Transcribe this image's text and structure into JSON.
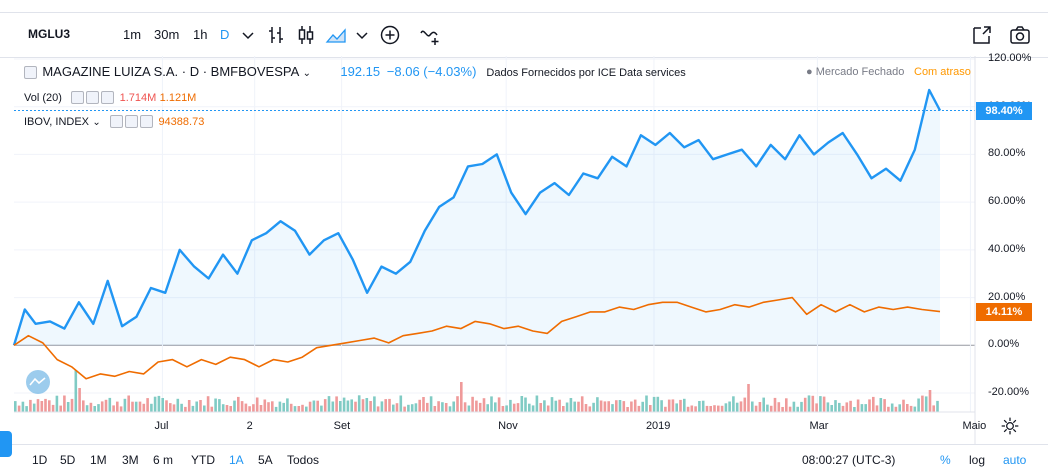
{
  "toolbar": {
    "symbol": "MGLU3",
    "intervals": [
      "1m",
      "30m",
      "1h",
      "D"
    ],
    "active_interval": "D"
  },
  "legend": {
    "title": "MAGAZINE LUIZA S.A. · D · BMFBOVESPA",
    "price": "192.15",
    "change": "−8.06 (−4.03%)",
    "provider": "Dados Fornecidos por ICE Data services",
    "market_status": "● Mercado Fechado",
    "delay": "Com atraso",
    "vol_label": "Vol (20)",
    "vol_val1": "1.714M",
    "vol_val2": "1.121M",
    "ibov_label": "IBOV, INDEX",
    "ibov_value": "94388.73"
  },
  "bottom": {
    "ranges": [
      "1D",
      "5D",
      "1M",
      "3M",
      "6 m",
      "YTD",
      "1A",
      "5A",
      "Todos"
    ],
    "active_range": "1A",
    "clock": "08:00:27 (UTC-3)",
    "pct": "%",
    "log": "log",
    "auto": "auto"
  },
  "colors": {
    "main": "#2196f3",
    "compare": "#ef6c00",
    "vol_up": "#80cbc4",
    "vol_down": "#ef9a9a"
  },
  "chart_data": {
    "type": "line",
    "title": "MAGAZINE LUIZA S.A. · D · BMFBOVESPA",
    "y_unit": "%",
    "ylim": [
      -28,
      122
    ],
    "yticks": [
      -20,
      0,
      20,
      40,
      60,
      80,
      100,
      120
    ],
    "ytick_labels": [
      "-20.00%",
      "0.00%",
      "20.00%",
      "40.00%",
      "60.00%",
      "80.00%",
      "100.00%",
      "120.00%"
    ],
    "xticks": [
      "Jul",
      "2",
      "Set",
      "Nov",
      "2019",
      "Mar",
      "Maio"
    ],
    "last_labels": {
      "MGLU3": "98.40%",
      "IBOV": "14.11%"
    },
    "series": [
      {
        "name": "MGLU3",
        "x": [
          0,
          3,
          6,
          10,
          14,
          18,
          22,
          26,
          30,
          34,
          38,
          42,
          46,
          50,
          54,
          58,
          62,
          66,
          70,
          74,
          78,
          82,
          86,
          90,
          94,
          98,
          102,
          106,
          110,
          114,
          118,
          122,
          126,
          130,
          134,
          138,
          142,
          146,
          150,
          154,
          158,
          162,
          166,
          170,
          174,
          178,
          182,
          186,
          190,
          194,
          198,
          202,
          206,
          210,
          214,
          218,
          222,
          226,
          230,
          234,
          238,
          242,
          246,
          250,
          254,
          257
        ],
        "y": [
          0,
          15,
          9,
          10,
          7,
          18,
          9,
          27,
          8,
          12,
          24,
          22,
          40,
          33,
          28,
          38,
          30,
          44,
          47,
          52,
          48,
          38,
          44,
          47,
          36,
          22,
          33,
          30,
          35,
          48,
          58,
          62,
          75,
          76,
          80,
          64,
          55,
          64,
          68,
          63,
          72,
          70,
          79,
          75,
          88,
          84,
          89,
          83,
          86,
          78,
          80,
          82,
          75,
          84,
          78,
          88,
          80,
          85,
          89,
          80,
          70,
          74,
          69,
          82,
          107,
          98.4
        ]
      },
      {
        "name": "IBOV, INDEX",
        "x": [
          0,
          4,
          8,
          12,
          16,
          20,
          24,
          28,
          32,
          36,
          40,
          44,
          48,
          52,
          56,
          60,
          64,
          68,
          72,
          76,
          80,
          84,
          88,
          92,
          96,
          100,
          104,
          108,
          112,
          116,
          120,
          124,
          128,
          132,
          136,
          140,
          144,
          148,
          152,
          156,
          160,
          164,
          168,
          172,
          176,
          180,
          184,
          188,
          192,
          196,
          200,
          204,
          208,
          212,
          216,
          220,
          224,
          228,
          232,
          236,
          240,
          244,
          248,
          252,
          257
        ],
        "y": [
          0,
          4,
          1,
          -6,
          -9,
          -14,
          -12,
          -13,
          -11,
          -12,
          -7,
          -6,
          -9,
          -6,
          -8,
          -5,
          -6,
          -9,
          -6,
          -7,
          -5,
          -1,
          0,
          1,
          2,
          3,
          1,
          4,
          5,
          6,
          8,
          7,
          10,
          9,
          7,
          8,
          6,
          5,
          10,
          12,
          14,
          14,
          16,
          15,
          17,
          18,
          18,
          16,
          14,
          15,
          17,
          16,
          18,
          19,
          20,
          13,
          17,
          14,
          17,
          14,
          16,
          15,
          16,
          15,
          14.11
        ]
      }
    ],
    "volume_note": "daily volume histogram beneath price"
  }
}
